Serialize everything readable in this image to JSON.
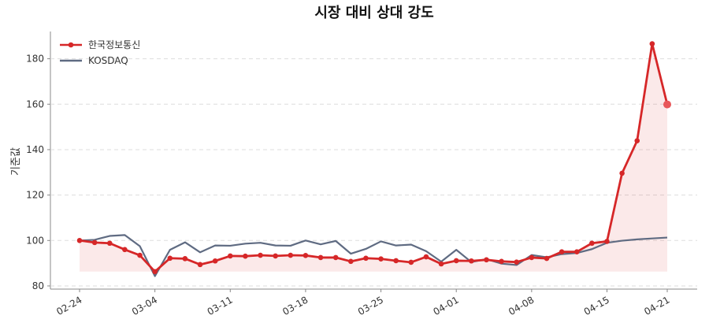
{
  "chart_data": {
    "type": "line",
    "title": "시장 대비 상대 강도",
    "y_label": "기준값",
    "categories": [
      "02-24",
      null,
      null,
      null,
      null,
      "03-04",
      null,
      null,
      null,
      null,
      "03-11",
      null,
      null,
      null,
      null,
      "03-18",
      null,
      null,
      null,
      null,
      "03-25",
      null,
      null,
      null,
      null,
      "04-01",
      null,
      null,
      null,
      null,
      "04-08",
      null,
      null,
      null,
      null,
      "04-15",
      null,
      null,
      null,
      "04-21"
    ],
    "series": [
      {
        "name": "한국정보통신",
        "color": "#d62728",
        "values": [
          100,
          99.1,
          98.8,
          96,
          93.5,
          86.3,
          92.2,
          92,
          89.4,
          91,
          93.2,
          93.1,
          93.5,
          93.2,
          93.5,
          93.4,
          92.5,
          92.5,
          90.8,
          92.2,
          91.9,
          91.1,
          90.4,
          92.8,
          89.7,
          91.1,
          91,
          91.5,
          90.8,
          90.5,
          92.5,
          92.1,
          95,
          95,
          98.8,
          99.6,
          129.6,
          143.9,
          186.6,
          159.9
        ]
      },
      {
        "name": "KOSDAQ",
        "color": "#5f6b82",
        "values": [
          100,
          100.3,
          102,
          102.4,
          97.5,
          84.3,
          95.9,
          99.2,
          94.8,
          97.8,
          97.7,
          98.6,
          99,
          97.8,
          97.7,
          100,
          98.3,
          99.8,
          94.2,
          96.3,
          99.6,
          97.8,
          98.2,
          95.3,
          90.7,
          95.9,
          90.5,
          91.8,
          89.8,
          89.2,
          93.6,
          92.6,
          94,
          94.5,
          96.2,
          99,
          99.9,
          100.5,
          100.9,
          101.3
        ]
      }
    ],
    "ylim": [
      78.6,
      192
    ],
    "yticks": [
      80,
      100,
      120,
      140,
      160,
      180
    ],
    "grid": true,
    "legend": "upper-left"
  }
}
